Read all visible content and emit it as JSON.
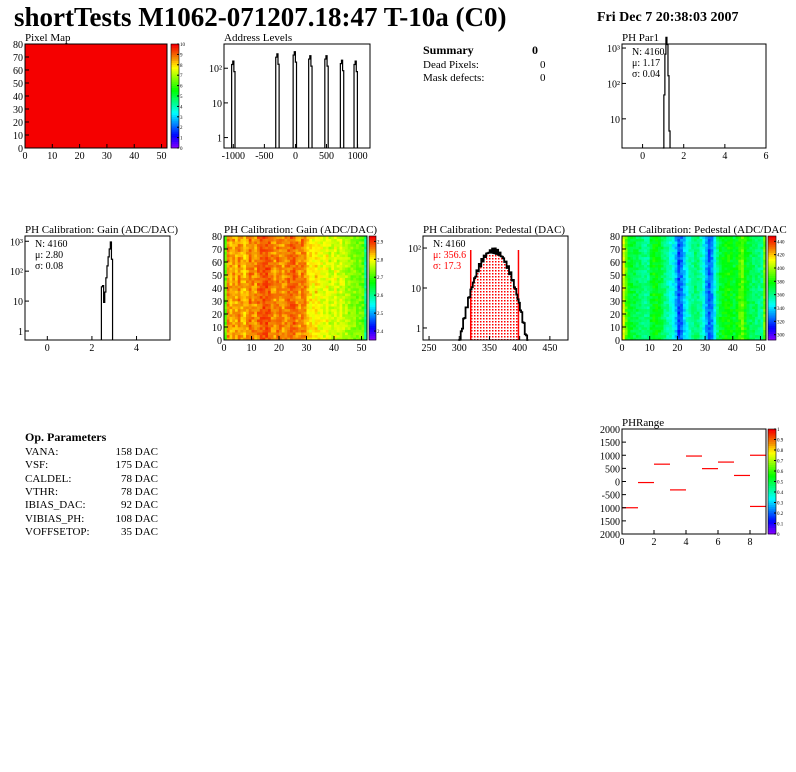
{
  "header": {
    "title": "shortTests M1062-071207.18:47 T-10a (C0)",
    "date": "Fri Dec  7 20:38:03 2007"
  },
  "summary": {
    "title": "Summary",
    "value": "0",
    "rows": [
      {
        "label": "Dead Pixels:",
        "value": "0"
      },
      {
        "label": "Mask defects:",
        "value": "0"
      }
    ]
  },
  "op_parameters": {
    "title": "Op. Parameters",
    "rows": [
      {
        "label": "VANA:",
        "value": "158 DAC"
      },
      {
        "label": "VSF:",
        "value": "175 DAC"
      },
      {
        "label": "CALDEL:",
        "value": "78 DAC"
      },
      {
        "label": "VTHR:",
        "value": "78 DAC"
      },
      {
        "label": "IBIAS_DAC:",
        "value": "92 DAC"
      },
      {
        "label": "VIBIAS_PH:",
        "value": "108 DAC"
      },
      {
        "label": "VOFFSETOP:",
        "value": "35 DAC"
      }
    ]
  },
  "colors": {
    "frame": "#000000",
    "stats_red": "#ff0000",
    "line_red": "#ff0000"
  },
  "chart_data": [
    {
      "id": "pixmap",
      "type": "heatmap",
      "title": "Pixel Map",
      "xlim": [
        0,
        52
      ],
      "ylim": [
        0,
        80
      ],
      "xticks": [
        0,
        10,
        20,
        30,
        40,
        50
      ],
      "yticks": [
        0,
        10,
        20,
        30,
        40,
        50,
        60,
        70,
        80
      ],
      "zlim": [
        0,
        10
      ],
      "zticks": [
        0,
        1,
        2,
        3,
        4,
        5,
        6,
        7,
        8,
        9,
        10
      ],
      "uniform_value": 10
    },
    {
      "id": "addr",
      "type": "bar",
      "title": "Address Levels",
      "xlim": [
        -1150,
        1200
      ],
      "ylim": [
        0.5,
        500
      ],
      "log_y": true,
      "xticks": [
        -1000,
        -500,
        0,
        500,
        1000
      ],
      "yticks": [
        {
          "v": 1,
          "l": "1"
        },
        {
          "v": 10,
          "l": "10"
        },
        {
          "v": 100,
          "l": "10²"
        }
      ],
      "peaks": [
        {
          "x": -1000,
          "y": 160
        },
        {
          "x": -290,
          "y": 260
        },
        {
          "x": -10,
          "y": 300
        },
        {
          "x": 240,
          "y": 230
        },
        {
          "x": 500,
          "y": 230
        },
        {
          "x": 750,
          "y": 170
        },
        {
          "x": 970,
          "y": 160
        }
      ]
    },
    {
      "id": "par1",
      "type": "histogram",
      "title": "PH Par1",
      "xlim": [
        -1,
        6
      ],
      "ylim": [
        1.5,
        1300
      ],
      "log_y": true,
      "xticks": [
        0,
        2,
        4,
        6
      ],
      "yticks": [
        {
          "v": 10,
          "l": "10"
        },
        {
          "v": 100,
          "l": "10²"
        },
        {
          "v": 1000,
          "l": "10³"
        }
      ],
      "stats": {
        "N": "N: 4160",
        "mean": "μ: 1.17",
        "sigma": "σ: 0.04"
      },
      "mean": 1.17,
      "sigma": 0.04,
      "entries": 4160,
      "bin": 0.05
    },
    {
      "id": "gain1d",
      "type": "histogram",
      "title": "PH Calibration: Gain (ADC/DAC)",
      "xlim": [
        -1,
        5.5
      ],
      "ylim": [
        0.5,
        1500
      ],
      "log_y": true,
      "xticks": [
        0,
        2,
        4
      ],
      "yticks": [
        {
          "v": 1,
          "l": "1"
        },
        {
          "v": 10,
          "l": "10"
        },
        {
          "v": 100,
          "l": "10²"
        },
        {
          "v": 1000,
          "l": "10³"
        }
      ],
      "stats": {
        "N": "N: 4160",
        "mean": "μ: 2.80",
        "sigma": "σ: 0.08"
      },
      "bins": [
        {
          "x": 2.45,
          "y": 30
        },
        {
          "x": 2.5,
          "y": 33
        },
        {
          "x": 2.55,
          "y": 9
        },
        {
          "x": 2.6,
          "y": 20
        },
        {
          "x": 2.65,
          "y": 60
        },
        {
          "x": 2.7,
          "y": 150
        },
        {
          "x": 2.75,
          "y": 300
        },
        {
          "x": 2.8,
          "y": 550
        },
        {
          "x": 2.85,
          "y": 950
        },
        {
          "x": 2.9,
          "y": 250
        }
      ],
      "bin": 0.05
    },
    {
      "id": "gainmap",
      "type": "heatmap",
      "title": "PH Calibration: Gain (ADC/DAC)",
      "xlim": [
        0,
        52
      ],
      "ylim": [
        0,
        80
      ],
      "xticks": [
        0,
        10,
        20,
        30,
        40,
        50
      ],
      "yticks": [
        0,
        10,
        20,
        30,
        40,
        50,
        60,
        70,
        80
      ],
      "zlim": [
        2.35,
        2.93
      ],
      "zticks": [
        2.4,
        2.5,
        2.6,
        2.7,
        2.8,
        2.9
      ],
      "column_profile": [
        2.72,
        2.86,
        2.84,
        2.85,
        2.84,
        2.86,
        2.84,
        2.83,
        2.85,
        2.87,
        2.86,
        2.85,
        2.87,
        2.88,
        2.89,
        2.89,
        2.88,
        2.86,
        2.85,
        2.87,
        2.86,
        2.85,
        2.86,
        2.87,
        2.88,
        2.88,
        2.86,
        2.85,
        2.87,
        2.86,
        2.82,
        2.81,
        2.8,
        2.82,
        2.8,
        2.79,
        2.78,
        2.8,
        2.77,
        2.78,
        2.79,
        2.77,
        2.78,
        2.77,
        2.76,
        2.75,
        2.74,
        2.74,
        2.73,
        2.73,
        2.72,
        2.6
      ]
    },
    {
      "id": "ped1d",
      "type": "histogram",
      "title": "PH Calibration: Pedestal (DAC)",
      "xlim": [
        240,
        480
      ],
      "ylim": [
        0.5,
        200
      ],
      "log_y": true,
      "xticks": [
        250,
        300,
        350,
        400,
        450
      ],
      "yticks": [
        {
          "v": 1,
          "l": "1"
        },
        {
          "v": 10,
          "l": "10"
        },
        {
          "v": 100,
          "l": "10²"
        }
      ],
      "stats": {
        "N": "N: 4160",
        "mean": "μ: 356.6",
        "sigma": "σ: 17.3"
      },
      "mean": 356.6,
      "sigma": 17.3,
      "entries": 4160,
      "bin": 2,
      "cut_lines": [
        319,
        398
      ]
    },
    {
      "id": "pedmap",
      "type": "heatmap",
      "title": "PH Calibration: Pedestal (ADC/DAC",
      "xlim": [
        0,
        52
      ],
      "ylim": [
        0,
        80
      ],
      "xticks": [
        0,
        10,
        20,
        30,
        40,
        50
      ],
      "yticks": [
        0,
        10,
        20,
        30,
        40,
        50,
        60,
        70,
        80
      ],
      "zlim": [
        292,
        448
      ],
      "zticks": [
        300,
        320,
        340,
        360,
        380,
        400,
        420,
        440
      ],
      "column_profile": [
        410,
        390,
        375,
        372,
        370,
        368,
        365,
        362,
        360,
        360,
        372,
        378,
        376,
        374,
        368,
        362,
        356,
        350,
        345,
        335,
        318,
        325,
        338,
        348,
        355,
        360,
        365,
        362,
        355,
        345,
        332,
        322,
        328,
        345,
        362,
        372,
        376,
        378,
        380,
        376,
        372,
        378,
        386,
        392,
        380,
        372,
        368,
        366,
        364,
        362,
        360,
        392
      ]
    },
    {
      "id": "phrange",
      "type": "segments",
      "title": "PHRange",
      "xlim": [
        0,
        9
      ],
      "ylim": [
        -2000,
        2000
      ],
      "xticks": [
        0,
        2,
        4,
        6,
        8
      ],
      "yticks": [
        {
          "v": 2000,
          "l": "2000"
        },
        {
          "v": 1500,
          "l": "1500"
        },
        {
          "v": 1000,
          "l": "1000"
        },
        {
          "v": 500,
          "l": "500"
        },
        {
          "v": 0,
          "l": "0"
        },
        {
          "v": -500,
          "l": "-500"
        },
        {
          "v": -1000,
          "l": "1000"
        },
        {
          "v": -1500,
          "l": "1500"
        },
        {
          "v": -2000,
          "l": "2000"
        }
      ],
      "zlim": [
        0,
        1
      ],
      "zticks": [
        0,
        0.1,
        0.2,
        0.3,
        0.4,
        0.5,
        0.6,
        0.7,
        0.8,
        0.9,
        1
      ],
      "segments": [
        {
          "x0": 0,
          "x1": 1,
          "y": -1000
        },
        {
          "x0": 1,
          "x1": 2,
          "y": -40
        },
        {
          "x0": 2,
          "x1": 3,
          "y": 660
        },
        {
          "x0": 3,
          "x1": 4,
          "y": -320
        },
        {
          "x0": 4,
          "x1": 5,
          "y": 970
        },
        {
          "x0": 5,
          "x1": 6,
          "y": 490
        },
        {
          "x0": 6,
          "x1": 7,
          "y": 740
        },
        {
          "x0": 7,
          "x1": 8,
          "y": 230
        },
        {
          "x0": 8,
          "x1": 9,
          "y": 1000
        },
        {
          "x0": 8,
          "x1": 9,
          "y": -950
        }
      ]
    }
  ]
}
